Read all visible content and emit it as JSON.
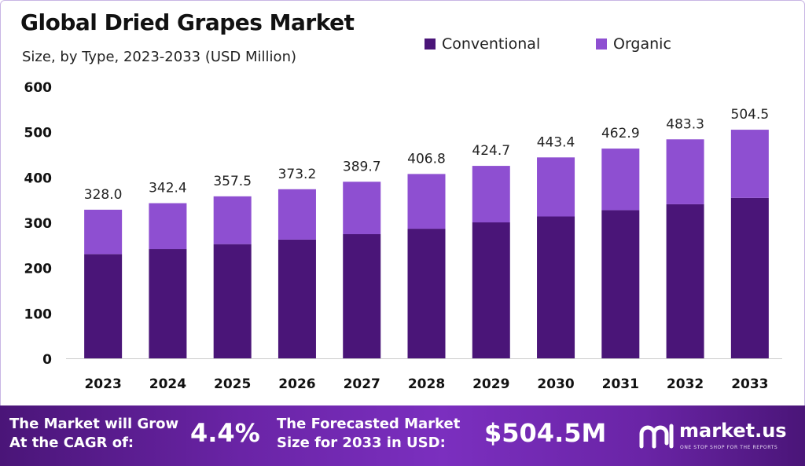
{
  "chart_data": {
    "type": "bar",
    "stacked": true,
    "title": "Global Dried Grapes Market",
    "subtitle": "Size, by Type, 2023-2033 (USD Million)",
    "categories": [
      "2023",
      "2024",
      "2025",
      "2026",
      "2027",
      "2028",
      "2029",
      "2030",
      "2031",
      "2032",
      "2033"
    ],
    "series": [
      {
        "name": "Conventional",
        "color": "#4a1578",
        "values": [
          230,
          241,
          252,
          262,
          274,
          286,
          300,
          313,
          327,
          340,
          354
        ]
      },
      {
        "name": "Organic",
        "color": "#8e4fd1",
        "values": [
          98,
          101.4,
          105.5,
          111.2,
          115.7,
          120.8,
          124.7,
          130.4,
          135.9,
          143.3,
          150.5
        ]
      }
    ],
    "totals": [
      "328.0",
      "342.4",
      "357.5",
      "373.2",
      "389.7",
      "406.8",
      "424.7",
      "443.4",
      "462.9",
      "483.3",
      "504.5"
    ],
    "ylim": [
      0,
      600
    ],
    "yticks": [
      0,
      100,
      200,
      300,
      400,
      500,
      600
    ],
    "legend_position": "top-right",
    "grid": false
  },
  "footer": {
    "grow_line1": "The Market will Grow",
    "grow_line2": "At the CAGR of:",
    "cagr": "4.4%",
    "forecast_line1": "The Forecasted Market",
    "forecast_line2": "Size for 2033 in USD:",
    "forecast_value": "$504.5M",
    "brand": "market.us",
    "brand_tagline": "ONE STOP SHOP FOR THE REPORTS"
  }
}
